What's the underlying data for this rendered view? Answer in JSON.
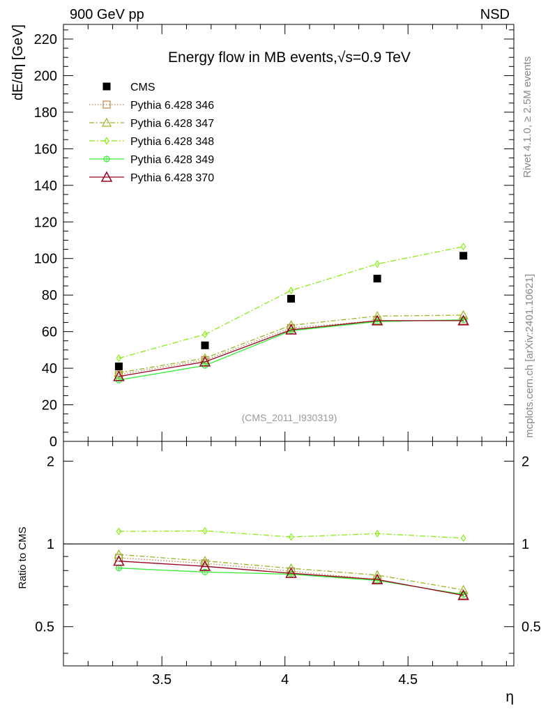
{
  "header": {
    "left": "900 GeV pp",
    "right": "NSD"
  },
  "side": {
    "rivet": "Rivet 4.1.0, ≥ 2.5M events",
    "mcplots": "mcplots.cern.ch [arXiv:2401.10621]"
  },
  "colors": {
    "cms": "#000000",
    "p346": "#b8864b",
    "p347": "#99b522",
    "p348": "#88ee11",
    "p349": "#33ee33",
    "p370": "#990022"
  },
  "chart_data": {
    "type": "line",
    "title": "Energy flow in MB events,√s=0.9 TeV",
    "watermark": "(CMS_2011_I930319)",
    "xlabel": "η",
    "ylabel": "dE/dη [GeV]",
    "ratio_ylabel": "Ratio to CMS",
    "xlim": [
      3.1,
      4.93
    ],
    "ylim": [
      0,
      228
    ],
    "ratio_ylim": [
      0.36,
      2.36
    ],
    "xticks": [
      3.5,
      4,
      4.5
    ],
    "xtick_labels": [
      "3.5",
      "4",
      "4.5"
    ],
    "yticks": [
      0,
      20,
      40,
      60,
      80,
      100,
      120,
      140,
      160,
      180,
      200,
      220
    ],
    "ytick_labels": [
      "0",
      "20",
      "40",
      "60",
      "80",
      "100",
      "120",
      "140",
      "160",
      "180",
      "200",
      "220"
    ],
    "ratio_yticks": [
      0.5,
      1,
      2
    ],
    "ratio_ytick_labels": [
      "0.5",
      "1",
      "2"
    ],
    "x": [
      3.325,
      3.675,
      4.025,
      4.375,
      4.725
    ],
    "series": [
      {
        "name": "CMS",
        "kind": "data",
        "values": [
          41,
          52.5,
          78,
          89,
          101.5
        ]
      },
      {
        "name": "Pythia 6.428 346",
        "kind": "mc",
        "values": [
          36.5,
          44.5,
          62,
          66,
          66
        ],
        "ratio": [
          0.89,
          0.85,
          0.795,
          0.742,
          0.65
        ]
      },
      {
        "name": "Pythia 6.428 347",
        "kind": "mc",
        "values": [
          37.5,
          45.5,
          63.5,
          68.5,
          69
        ],
        "ratio": [
          0.915,
          0.867,
          0.815,
          0.77,
          0.68
        ]
      },
      {
        "name": "Pythia 6.428 348",
        "kind": "mc",
        "values": [
          45.5,
          58.5,
          82.5,
          97,
          106.5
        ],
        "ratio": [
          1.11,
          1.115,
          1.06,
          1.09,
          1.05
        ]
      },
      {
        "name": "Pythia 6.428 349",
        "kind": "mc",
        "values": [
          33.5,
          41.5,
          60.5,
          65.5,
          66.5
        ],
        "ratio": [
          0.817,
          0.79,
          0.776,
          0.736,
          0.655
        ]
      },
      {
        "name": "Pythia 6.428 370",
        "kind": "mc",
        "values": [
          35.5,
          43.5,
          61,
          66,
          66
        ],
        "ratio": [
          0.866,
          0.829,
          0.782,
          0.742,
          0.65
        ]
      }
    ]
  }
}
